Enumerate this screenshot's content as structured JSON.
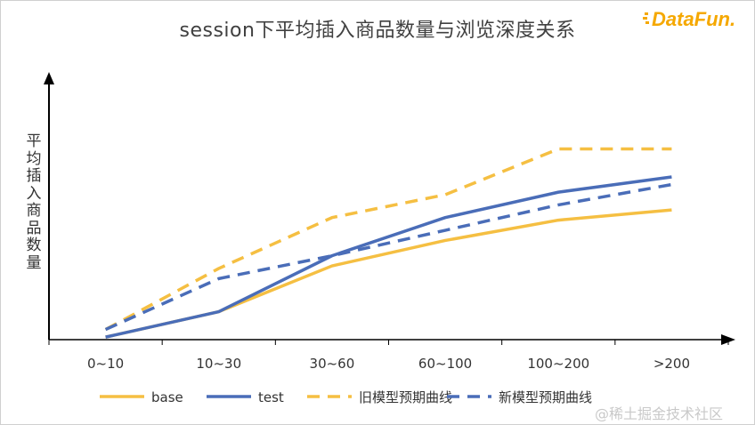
{
  "chart_data": {
    "type": "line",
    "title": "session下平均插入商品数量与浏览深度关系",
    "ylabel": "平均插入商品数量",
    "xlabel": "",
    "categories": [
      "0~10",
      "10~30",
      "30~60",
      "60~100",
      "100~200",
      ">200"
    ],
    "ylim": [
      0,
      10
    ],
    "y_ticks_shown": false,
    "grid": false,
    "legend_position": "bottom",
    "series": [
      {
        "name": "base",
        "style": "solid",
        "color": "#F5BF42",
        "values": [
          0.1,
          1.1,
          2.9,
          3.9,
          4.7,
          5.1
        ]
      },
      {
        "name": "test",
        "style": "solid",
        "color": "#4A6DB8",
        "values": [
          0.1,
          1.1,
          3.3,
          4.8,
          5.8,
          6.4
        ]
      },
      {
        "name": "旧模型预期曲线",
        "style": "dashed",
        "color": "#F5BF42",
        "values": [
          0.4,
          2.8,
          4.8,
          5.7,
          7.5,
          7.5
        ]
      },
      {
        "name": "新模型预期曲线",
        "style": "dashed",
        "color": "#4A6DB8",
        "values": [
          0.4,
          2.4,
          3.3,
          4.3,
          5.3,
          6.1
        ]
      }
    ]
  },
  "watermark": "@稀土掘金技术社区",
  "logo": {
    "text": "DataFun.",
    "color": "#F5A800"
  }
}
